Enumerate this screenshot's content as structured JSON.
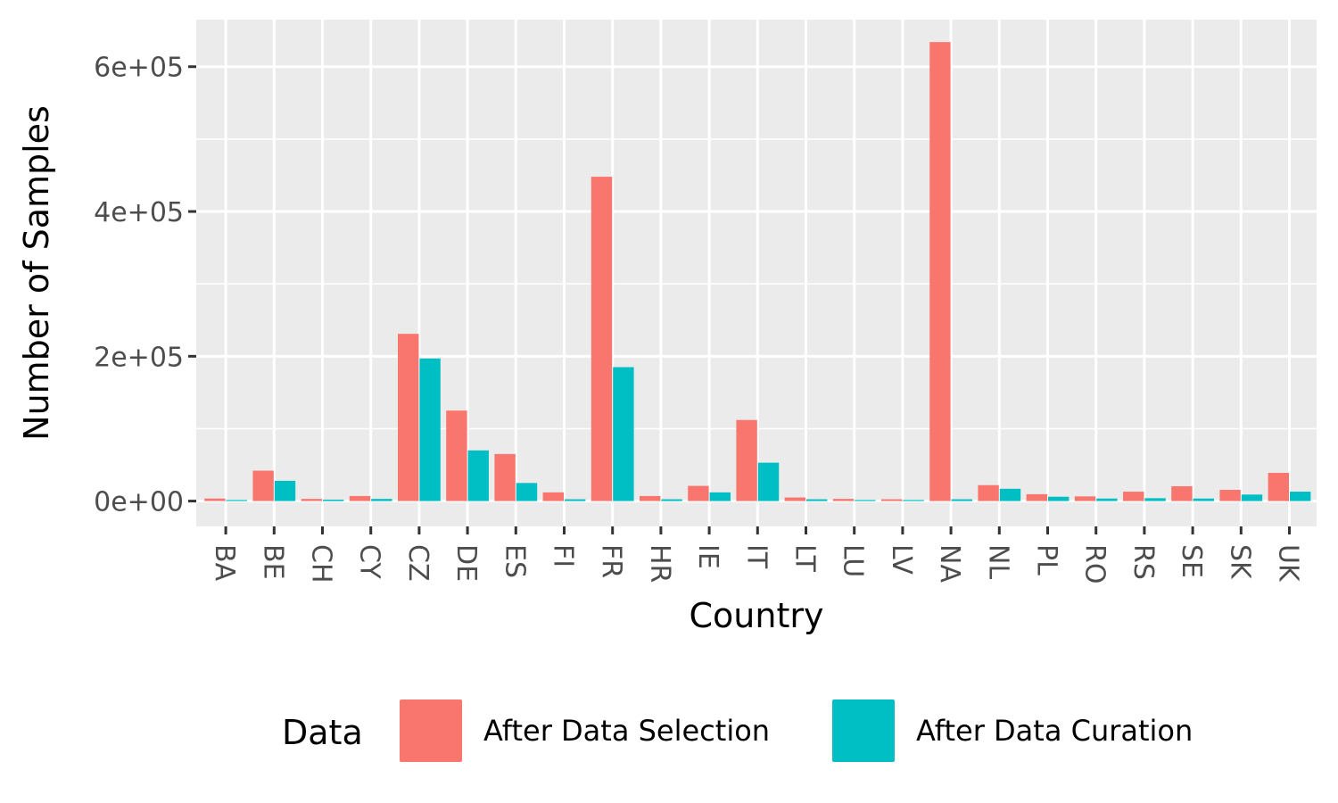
{
  "chart_data": {
    "type": "bar",
    "xlabel": "Country",
    "ylabel": "Number of Samples",
    "ylim": [
      -35000,
      665000
    ],
    "yticks": [
      0,
      200000,
      400000,
      600000
    ],
    "ytick_labels": [
      "0e+00",
      "2e+05",
      "4e+05",
      "6e+05"
    ],
    "grid": true,
    "legend": {
      "title": "Data",
      "placement": "bottom"
    },
    "categories": [
      "BA",
      "BE",
      "CH",
      "CY",
      "CZ",
      "DE",
      "ES",
      "FI",
      "FR",
      "HR",
      "IE",
      "IT",
      "LT",
      "LU",
      "LV",
      "NA",
      "NL",
      "PL",
      "RO",
      "RS",
      "SE",
      "SK",
      "UK"
    ],
    "series": [
      {
        "name": "After Data Selection",
        "color": "#F8766D",
        "values": [
          3500,
          42000,
          3000,
          7000,
          231000,
          125000,
          65000,
          12000,
          448000,
          7000,
          21000,
          112000,
          5000,
          3000,
          2500,
          634000,
          22000,
          9500,
          6500,
          13000,
          20500,
          15500,
          39000
        ]
      },
      {
        "name": "After Data Curation",
        "color": "#00BFC4",
        "values": [
          1500,
          28000,
          2000,
          3000,
          197000,
          70000,
          25000,
          2500,
          185000,
          2500,
          12000,
          53000,
          2500,
          1500,
          1500,
          2500,
          17000,
          6000,
          3500,
          4000,
          3500,
          9000,
          13000
        ]
      }
    ]
  }
}
